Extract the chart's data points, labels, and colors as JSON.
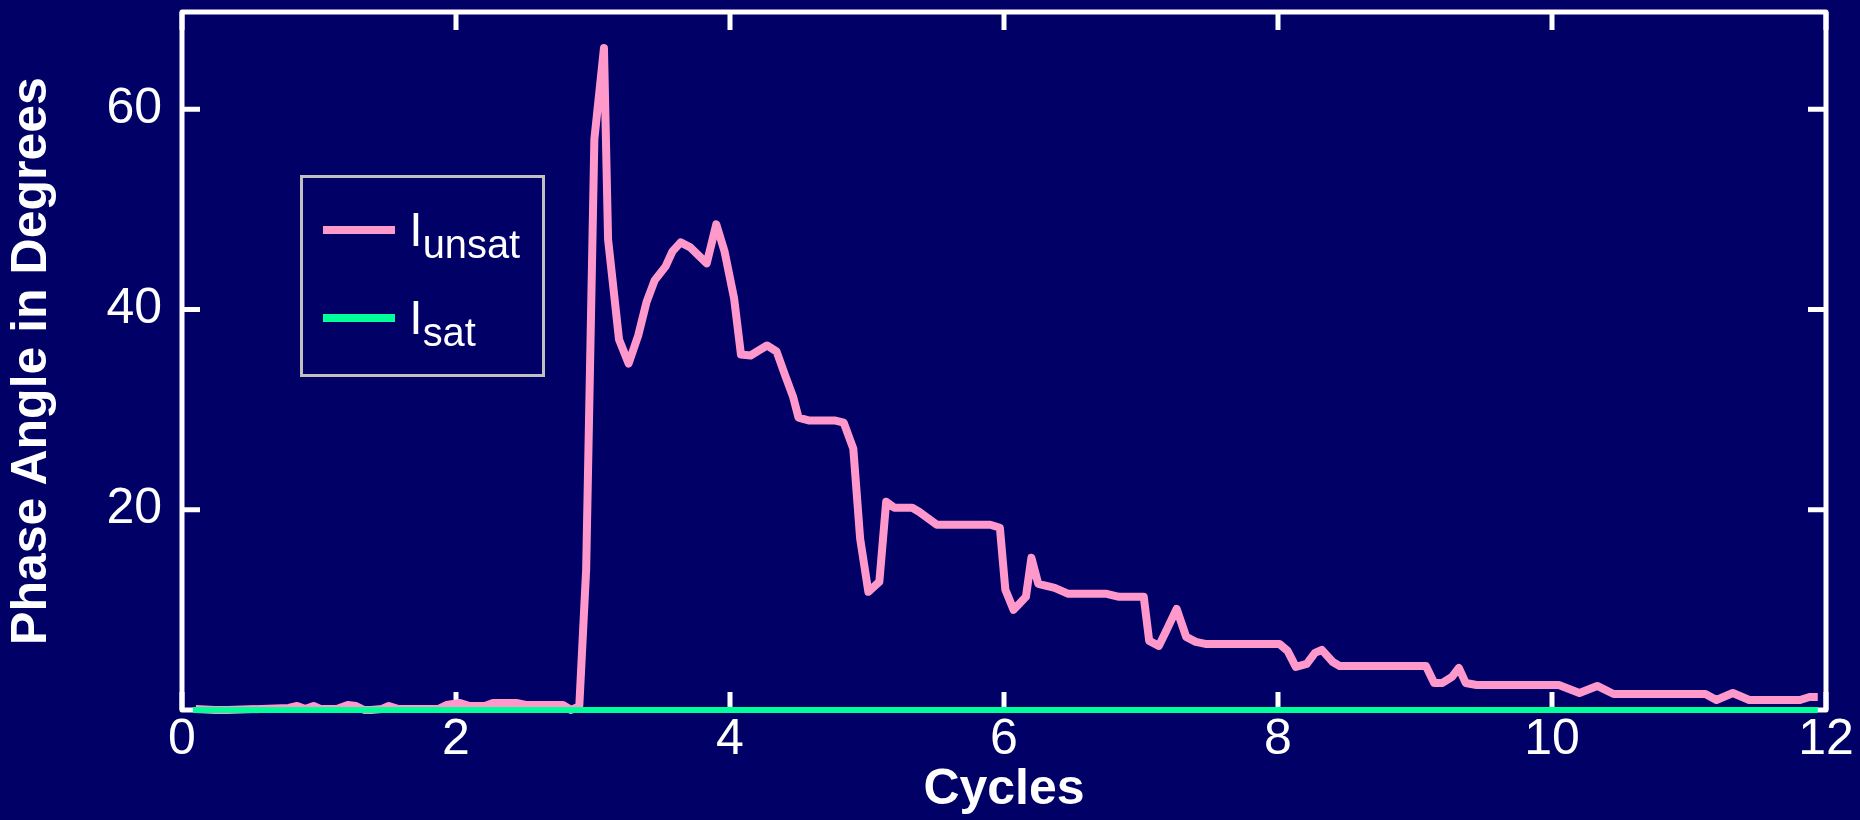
{
  "chart_data": {
    "type": "line",
    "xlabel": "Cycles",
    "ylabel": "Phase Angle in Degrees",
    "xlim": [
      0,
      12
    ],
    "xticks": [
      0,
      2,
      4,
      6,
      8,
      10,
      12
    ],
    "ylim": [
      0,
      69.7
    ],
    "yticks": [
      20,
      40,
      60
    ],
    "grid": false,
    "legend": "top left",
    "marker": "none",
    "line_style": "solid",
    "series": [
      {
        "name": "I$_{unsat}$",
        "color": "#ff99cc",
        "x": [
          0.1,
          0.24,
          0.33,
          0.78,
          0.84,
          0.9,
          0.96,
          1.01,
          1.13,
          1.21,
          1.27,
          1.33,
          1.38,
          1.46,
          1.51,
          1.58,
          1.87,
          1.93,
          2.03,
          2.1,
          2.21,
          2.27,
          2.44,
          2.51,
          2.78,
          2.84,
          2.9,
          2.95,
          3.01,
          3.08,
          3.11,
          3.19,
          3.26,
          3.33,
          3.39,
          3.45,
          3.53,
          3.58,
          3.64,
          3.71,
          3.77,
          3.83,
          3.9,
          3.96,
          4.03,
          4.08,
          4.15,
          4.27,
          4.34,
          4.4,
          4.46,
          4.5,
          4.58,
          4.77,
          4.83,
          4.9,
          4.95,
          5.01,
          5.09,
          5.14,
          5.2,
          5.33,
          5.38,
          5.51,
          5.9,
          5.97,
          6.01,
          6.07,
          6.16,
          6.2,
          6.25,
          6.37,
          6.47,
          6.75,
          6.84,
          7.02,
          7.06,
          7.13,
          7.18,
          7.26,
          7.33,
          7.4,
          7.47,
          8.01,
          8.07,
          8.13,
          8.21,
          8.27,
          8.32,
          8.4,
          8.45,
          9.08,
          9.14,
          9.2,
          9.27,
          9.32,
          9.37,
          9.45,
          10.05,
          10.2,
          10.33,
          10.45,
          11.12,
          11.2,
          11.32,
          11.44,
          11.81,
          11.88,
          11.94
        ],
        "values": [
          0.1,
          0.0,
          0.0,
          0.2,
          0.4,
          0.1,
          0.4,
          0.1,
          0.1,
          0.5,
          0.4,
          0.0,
          0.0,
          0.1,
          0.4,
          0.1,
          0.1,
          0.5,
          0.7,
          0.4,
          0.4,
          0.7,
          0.7,
          0.5,
          0.5,
          0.0,
          0.4,
          14,
          57,
          66.1,
          47.0,
          37.0,
          34.6,
          37.4,
          40.7,
          42.9,
          44.3,
          45.8,
          46.7,
          46.2,
          45.4,
          44.6,
          48.5,
          45.8,
          41.1,
          35.5,
          35.4,
          36.4,
          35.8,
          33.5,
          31.3,
          29.2,
          28.9,
          28.9,
          28.7,
          26.1,
          17.1,
          11.8,
          12.8,
          20.8,
          20.2,
          20.2,
          19.8,
          18.5,
          18.5,
          18.2,
          12.0,
          10.0,
          11.3,
          15.2,
          12.6,
          12.2,
          11.6,
          11.6,
          11.3,
          11.3,
          6.9,
          6.4,
          7.8,
          10.1,
          7.3,
          6.8,
          6.6,
          6.6,
          5.9,
          4.3,
          4.6,
          5.7,
          6.0,
          4.8,
          4.4,
          4.4,
          2.7,
          2.7,
          3.3,
          4.2,
          2.7,
          2.5,
          2.5,
          1.7,
          2.4,
          1.6,
          1.6,
          1.0,
          1.7,
          1.0,
          1.0,
          1.3,
          1.3
        ]
      },
      {
        "name": "I$_{sat}$",
        "color": "#00ff99",
        "x": [
          0.08,
          11.94
        ],
        "values": [
          0,
          0
        ]
      }
    ]
  }
}
